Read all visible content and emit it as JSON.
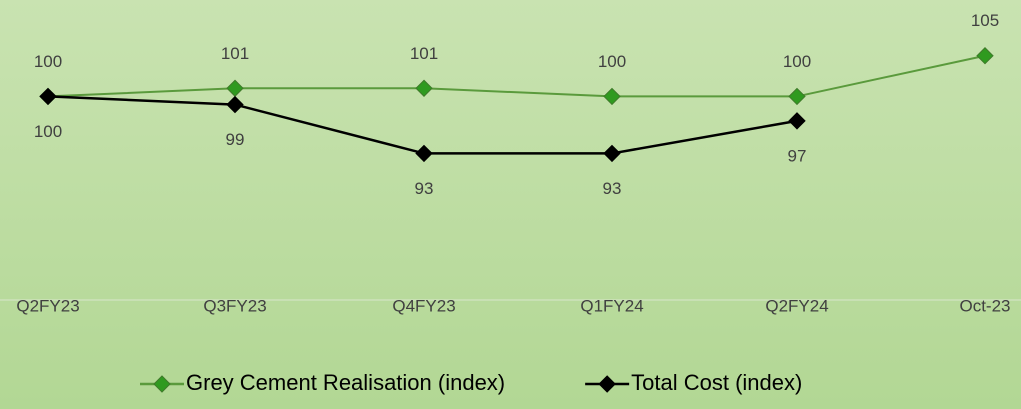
{
  "chart_data": {
    "type": "line",
    "categories": [
      "Q2FY23",
      "Q3FY23",
      "Q4FY23",
      "Q1FY24",
      "Q2FY24",
      "Oct-23"
    ],
    "series": [
      {
        "name": "Grey Cement Realisation (index)",
        "color": "#5a9a3c",
        "marker_color": "#2f9a1f",
        "values": [
          100,
          101,
          101,
          100,
          100,
          105
        ]
      },
      {
        "name": "Total Cost (index)",
        "color": "#000000",
        "marker_color": "#000000",
        "values": [
          100,
          99,
          93,
          93,
          97,
          null
        ]
      }
    ],
    "ylim": [
      75,
      110
    ],
    "grid": false,
    "legend": "bottom"
  }
}
